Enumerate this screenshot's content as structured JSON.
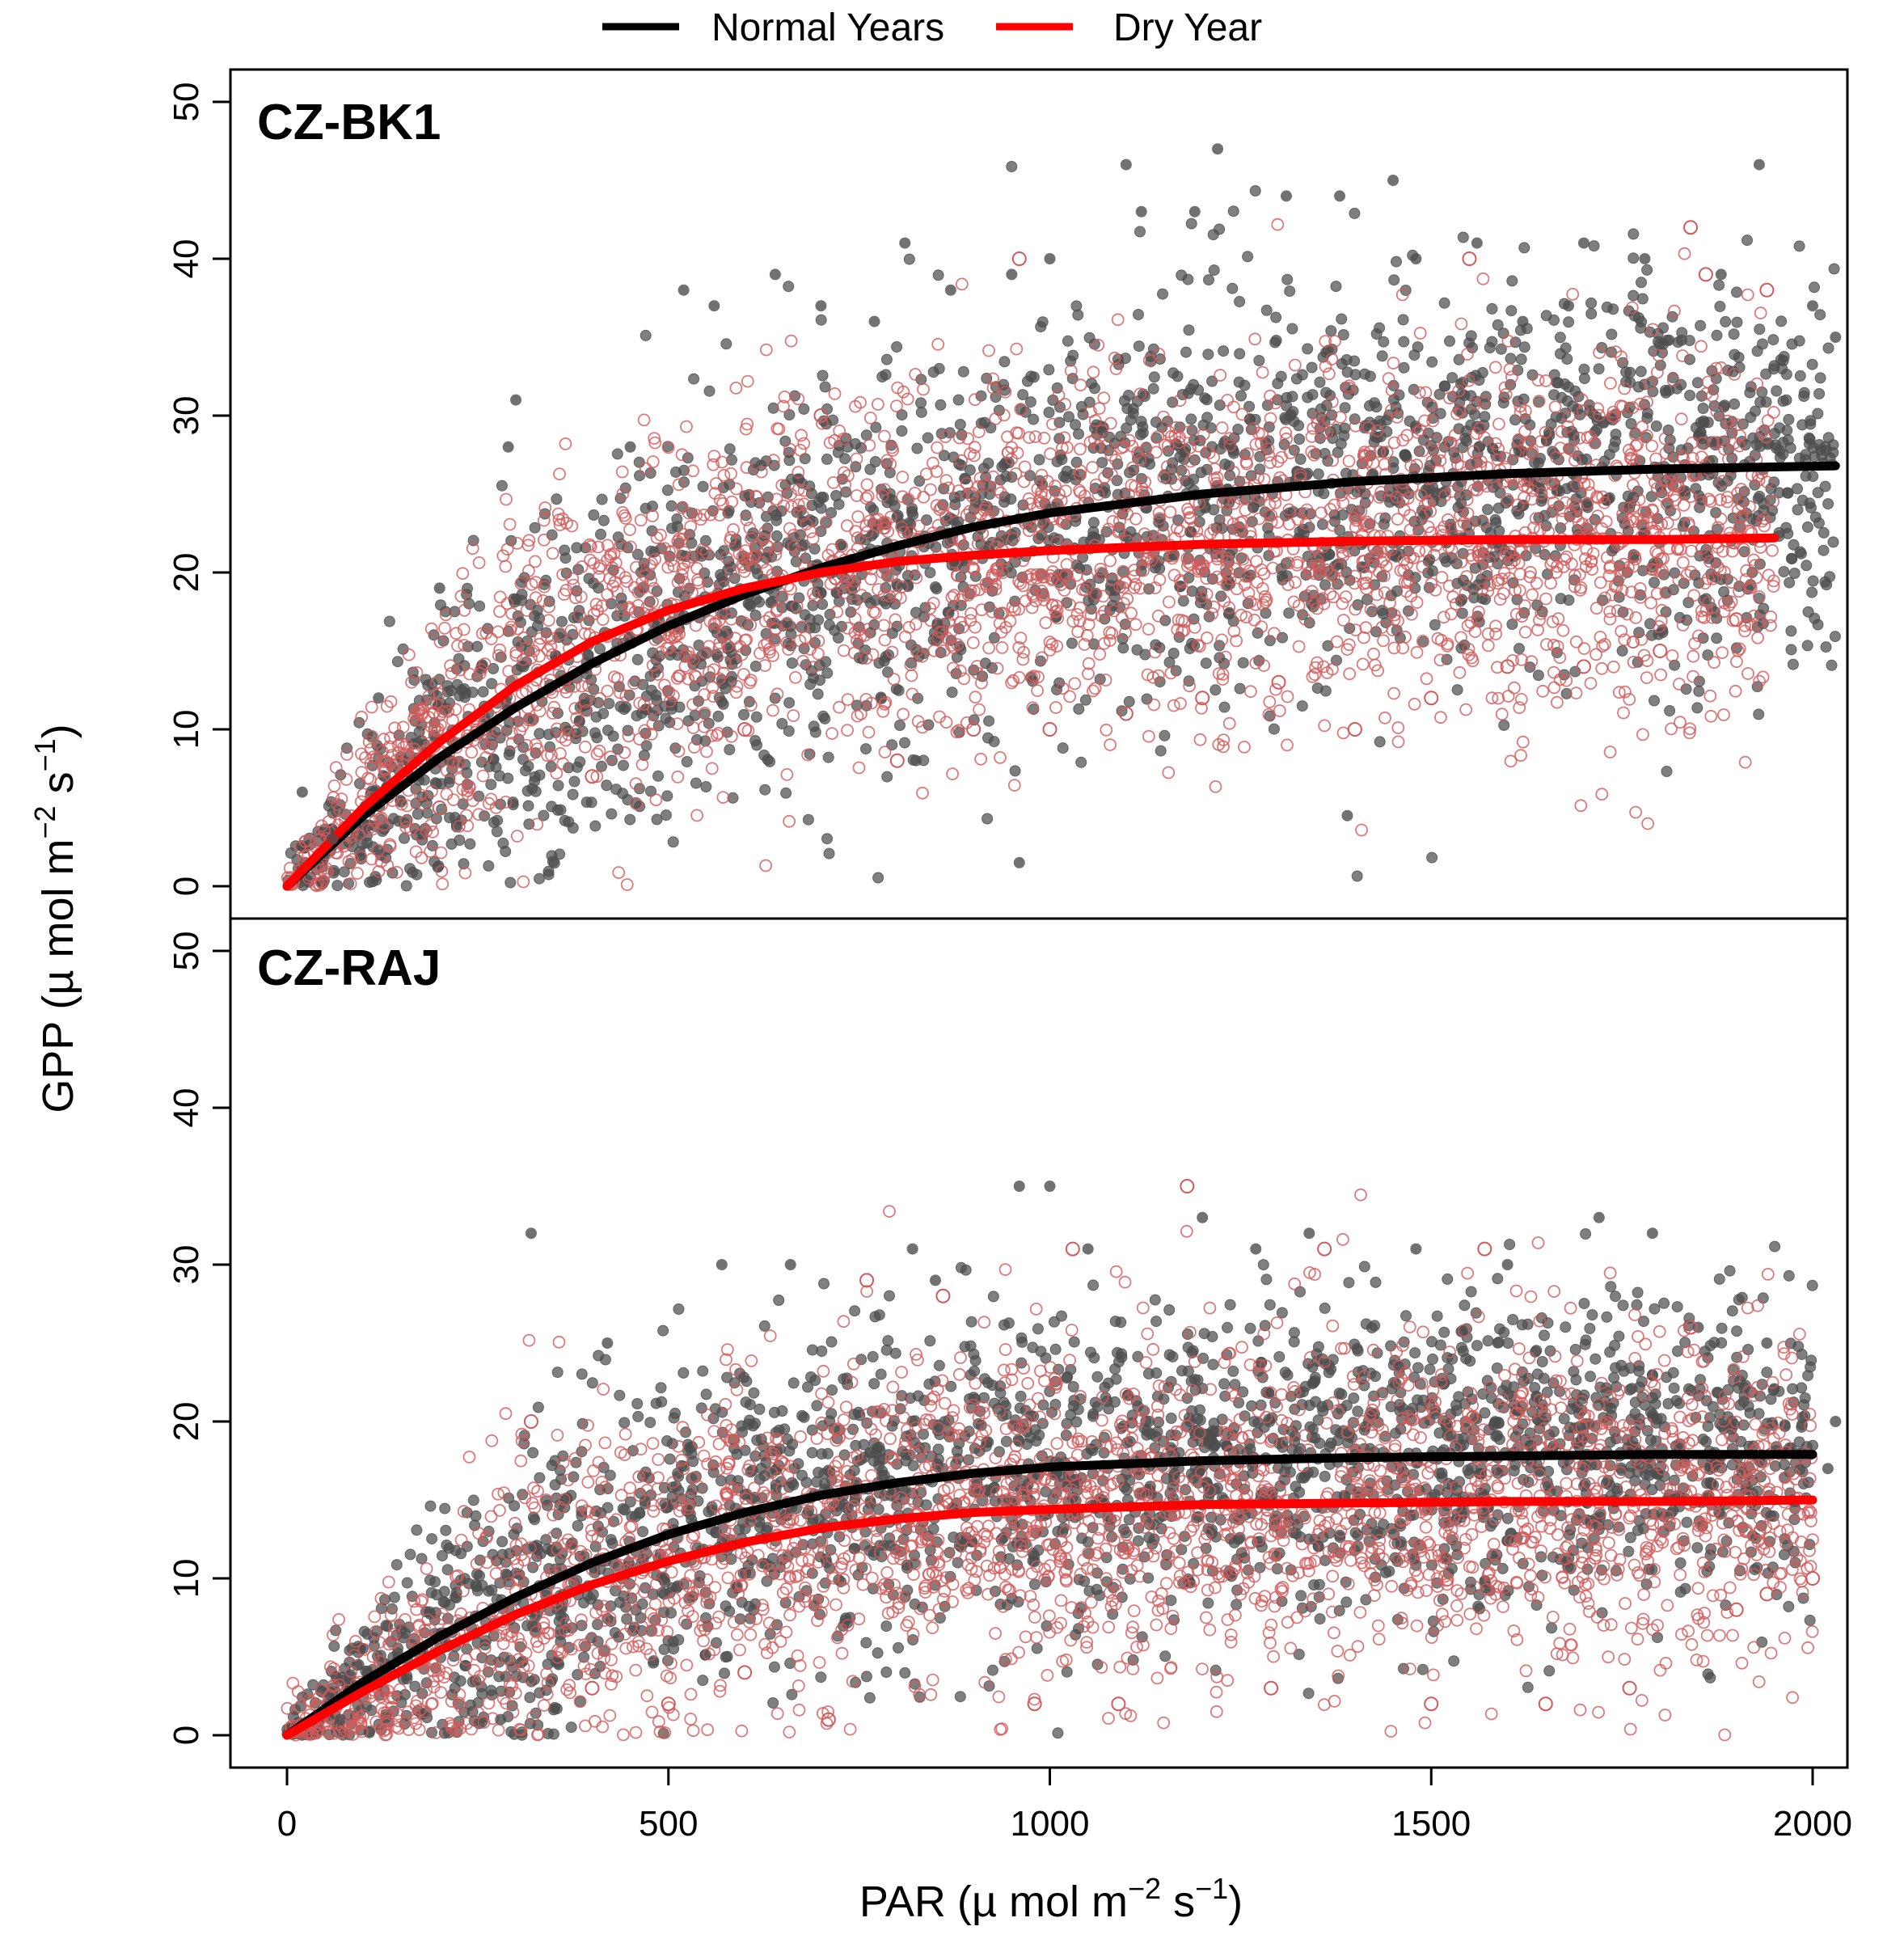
{
  "legend": {
    "entries": [
      {
        "label": "Normal Years",
        "color": "#000000"
      },
      {
        "label": "Dry Year",
        "color": "#ff0000"
      }
    ]
  },
  "axes": {
    "xlabel": "PAR",
    "xlabel_units": {
      "open": "(µ mol m",
      "exp1": "−2",
      "mid": " s",
      "exp2": "−1",
      "close": ")"
    },
    "ylabel": "GPP",
    "ylabel_units": {
      "open": "(µ mol m",
      "exp1": "−2",
      "mid": " s",
      "exp2": "−1",
      "close": ")"
    }
  },
  "colors": {
    "normal_points": "#4d4d4d",
    "dry_points": "#d25a5a",
    "normal_line": "#000000",
    "dry_line": "#ff0000"
  },
  "chart_data": [
    {
      "type": "scatter",
      "title": "CZ-BK1",
      "xlim": [
        -70,
        2060
      ],
      "ylim": [
        -2,
        52
      ],
      "xticks": [
        0,
        500,
        1000,
        1500,
        2000
      ],
      "xtick_labels": [
        "0",
        "500",
        "1000",
        "1500",
        "2000"
      ],
      "yticks": [
        0,
        10,
        20,
        30,
        40,
        50
      ],
      "ytick_labels": [
        "0",
        "10",
        "20",
        "30",
        "40",
        "50"
      ],
      "show_x_ticks": false,
      "series": [
        {
          "name": "Normal Years",
          "kind": "fit-line",
          "x": [
            0,
            100,
            200,
            300,
            400,
            500,
            600,
            700,
            800,
            900,
            1000,
            1200,
            1400,
            1600,
            1800,
            2030
          ],
          "y": [
            0,
            4.5,
            8.2,
            11.4,
            14.2,
            16.6,
            18.6,
            20.3,
            21.7,
            22.9,
            23.8,
            25.0,
            25.8,
            26.3,
            26.6,
            26.8
          ]
        },
        {
          "name": "Dry Year",
          "kind": "fit-line",
          "x": [
            0,
            100,
            200,
            300,
            400,
            500,
            600,
            700,
            800,
            900,
            1000,
            1200,
            1400,
            1600,
            1800,
            1950
          ],
          "y": [
            0,
            5.0,
            9.2,
            12.8,
            15.6,
            17.6,
            19.0,
            20.0,
            20.7,
            21.1,
            21.4,
            21.8,
            22.0,
            22.1,
            22.1,
            22.2
          ]
        },
        {
          "name": "Normal Years",
          "kind": "points",
          "x": [
            20,
            60,
            120,
            200,
            290,
            300,
            450,
            520,
            560,
            640,
            700,
            770,
            810,
            870,
            950,
            960,
            1000,
            1100,
            1120,
            1190,
            1220,
            1310,
            1380,
            1390,
            1450,
            1480,
            1560,
            1620,
            1680,
            1700,
            1780,
            1880,
            1930,
            2000,
            2030
          ],
          "y": [
            6,
            3,
            12,
            19,
            28,
            31,
            28,
            38,
            37,
            39,
            37,
            36,
            41,
            38,
            39,
            1.5,
            40,
            46,
            43,
            43,
            47,
            44,
            44,
            4.5,
            45,
            40,
            41,
            36,
            37,
            41,
            40,
            39,
            46,
            37,
            35
          ]
        },
        {
          "name": "Dry Year",
          "kind": "points",
          "x": [
            200,
            400,
            600,
            700,
            800,
            900,
            960,
            1000,
            1100,
            1200,
            1300,
            1400,
            1500,
            1550,
            1600,
            1700,
            1800,
            1840,
            1860,
            1900,
            1940
          ],
          "y": [
            5,
            7,
            10,
            30,
            8,
            10,
            40,
            10,
            11,
            12,
            13,
            10,
            12,
            40,
            14,
            14,
            15,
            42,
            39,
            17,
            38
          ]
        }
      ]
    },
    {
      "type": "scatter",
      "title": "CZ-RAJ",
      "xlim": [
        -70,
        2060
      ],
      "ylim": [
        -2,
        52
      ],
      "xticks": [
        0,
        500,
        1000,
        1500,
        2000
      ],
      "xtick_labels": [
        "0",
        "500",
        "1000",
        "1500",
        "2000"
      ],
      "yticks": [
        0,
        10,
        20,
        30,
        40,
        50
      ],
      "ytick_labels": [
        "0",
        "10",
        "20",
        "30",
        "40",
        "50"
      ],
      "show_x_ticks": true,
      "series": [
        {
          "name": "Normal Years",
          "kind": "fit-line",
          "x": [
            0,
            100,
            200,
            300,
            400,
            500,
            600,
            700,
            800,
            900,
            1000,
            1200,
            1400,
            1600,
            1800,
            2000
          ],
          "y": [
            0,
            3.4,
            6.3,
            8.8,
            11.0,
            12.8,
            14.2,
            15.3,
            16.1,
            16.7,
            17.1,
            17.5,
            17.7,
            17.8,
            17.9,
            17.9
          ]
        },
        {
          "name": "Dry Year",
          "kind": "fit-line",
          "x": [
            0,
            100,
            200,
            300,
            400,
            500,
            600,
            700,
            800,
            900,
            1000,
            1200,
            1400,
            1600,
            1800,
            2000
          ],
          "y": [
            0,
            2.8,
            5.4,
            7.7,
            9.6,
            11.1,
            12.3,
            13.2,
            13.8,
            14.2,
            14.4,
            14.7,
            14.8,
            14.9,
            14.9,
            15.0
          ]
        },
        {
          "name": "Normal Years",
          "kind": "points",
          "x": [
            70,
            280,
            320,
            420,
            570,
            660,
            820,
            850,
            960,
            1000,
            1050,
            1200,
            1270,
            1340,
            1480,
            1600,
            1720,
            1790,
            1850,
            1940,
            2030,
            2020
          ],
          "y": [
            1,
            1,
            32,
            25,
            30,
            30,
            31,
            29,
            35,
            35,
            31,
            33,
            31,
            32,
            31,
            30,
            33,
            32,
            26,
            25,
            20,
            17
          ]
        },
        {
          "name": "Dry Year",
          "kind": "points",
          "x": [
            320,
            400,
            500,
            600,
            710,
            760,
            860,
            980,
            1030,
            1090,
            1180,
            1290,
            1360,
            1500,
            1570,
            1650,
            1760,
            1840,
            1900,
            1940,
            2000
          ],
          "y": [
            20,
            3,
            2,
            4,
            1,
            29,
            28,
            2,
            31,
            2,
            35,
            3,
            31,
            2,
            31,
            2,
            3,
            26,
            8,
            9,
            10
          ]
        }
      ]
    }
  ]
}
